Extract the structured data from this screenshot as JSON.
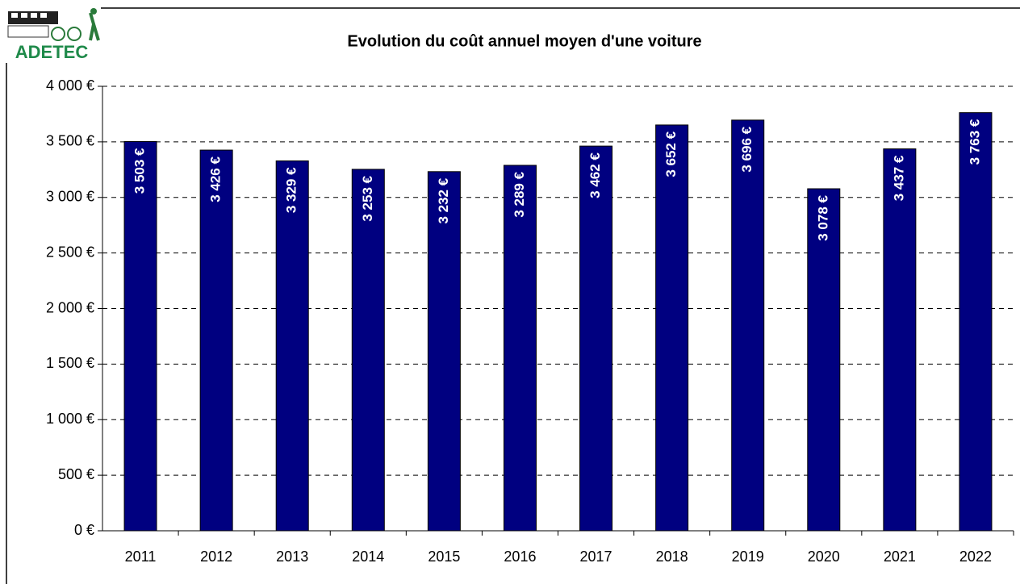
{
  "logo_text": "ADETEC",
  "chart_data": {
    "type": "bar",
    "title": "Evolution du coût annuel moyen d'une voiture",
    "categories": [
      "2011",
      "2012",
      "2013",
      "2014",
      "2015",
      "2016",
      "2017",
      "2018",
      "2019",
      "2020",
      "2021",
      "2022"
    ],
    "values": [
      3503,
      3426,
      3329,
      3253,
      3232,
      3289,
      3462,
      3652,
      3696,
      3078,
      3437,
      3763
    ],
    "value_labels": [
      "3 503 €",
      "3 426 €",
      "3 329 €",
      "3 253 €",
      "3 232 €",
      "3 289 €",
      "3 462 €",
      "3 652 €",
      "3 696 €",
      "3 078 €",
      "3 437 €",
      "3 763 €"
    ],
    "color": "#000080",
    "ylim": [
      0,
      4000
    ],
    "yticks": [
      {
        "value": 0,
        "label": "0 €"
      },
      {
        "value": 500,
        "label": "500 €"
      },
      {
        "value": 1000,
        "label": "1 000 €"
      },
      {
        "value": 1500,
        "label": "1 500 €"
      },
      {
        "value": 2000,
        "label": "2 000 €"
      },
      {
        "value": 2500,
        "label": "2 500 €"
      },
      {
        "value": 3000,
        "label": "3 000 €"
      },
      {
        "value": 3500,
        "label": "3 500 €"
      },
      {
        "value": 4000,
        "label": "4 000 €"
      }
    ],
    "grid": true
  }
}
